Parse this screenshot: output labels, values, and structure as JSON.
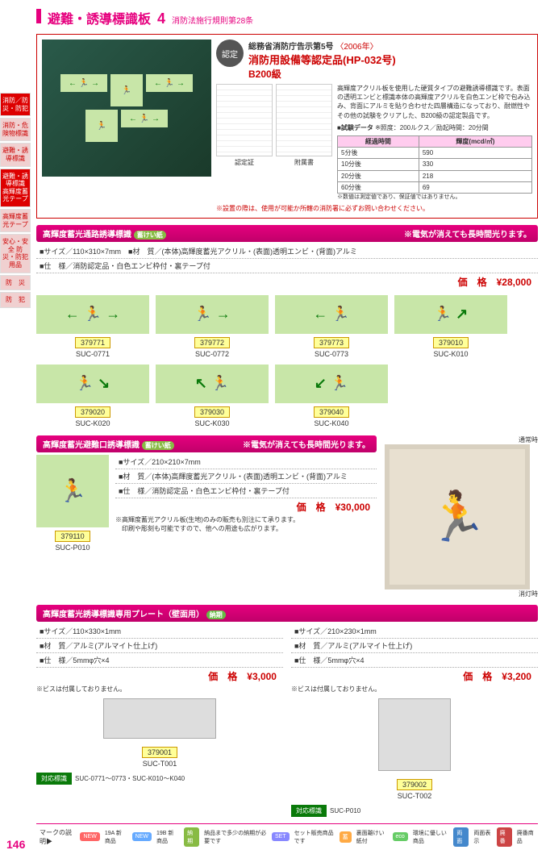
{
  "header": {
    "title": "避難・誘導標識板",
    "num": "4",
    "sub": "消防法施行規則第28条"
  },
  "sidetabs": [
    "消防／防災・防犯",
    "消防・危険物標識",
    "避難・誘導標識",
    "避難・誘導標識 高輝度蓄光テープ",
    "高輝度蓄光テープ",
    "安心・安全 防災・防犯用品",
    "防　災",
    "防　犯"
  ],
  "cert": {
    "stamp": "認定",
    "l1": "総務省消防庁告示第5号",
    "yr": "〈2006年〉",
    "l3": "消防用設備等認定品(HP-032号)",
    "l4": "B200級",
    "desc": "高輝度アクリル板を使用した硬質タイプの避難誘導標識です。表面の透明エンビと標識本体の高輝度アクリルを白色エンビ枠で包み込み、背面にアルミを貼り合わせた四層構造になっており、耐燃性やその他の試験をクリアした、B200級の認定製品です。",
    "docs": [
      "認定証",
      "附属書"
    ],
    "testTitle": "■試験データ",
    "testNote": "※照度：200ルクス／励起時間：20分間",
    "testHdr": [
      "経過時間",
      "輝度(mcd/㎡)"
    ],
    "testRows": [
      [
        "5分後",
        "590"
      ],
      [
        "10分後",
        "330"
      ],
      [
        "20分後",
        "218"
      ],
      [
        "60分後",
        "69"
      ]
    ],
    "testFoot": "※数値は測定値であり、保証値ではありません。",
    "warn": "※設置の際は、使用が可能か所轄の消防署に必ずお問い合わせください。"
  },
  "sec1": {
    "title": "高輝度蓄光通路誘導標識",
    "tag": "蓄けい紙",
    "right": "※電気が消えても長時間光ります。",
    "specs": [
      "■サイズ／110×310×7mm　■材　質／(本体)高輝度蓄光アクリル・(表面)透明エンビ・(背面)アルミ",
      "■仕　様／消防認定品・白色エンビ枠付・裏テープ付"
    ],
    "price": "価　格　¥28,000",
    "prods": [
      {
        "sym": "← 🏃 →",
        "code": "379771",
        "model": "SUC-0771"
      },
      {
        "sym": "🏃 →",
        "code": "379772",
        "model": "SUC-0772"
      },
      {
        "sym": "← 🏃",
        "code": "379773",
        "model": "SUC-0773"
      },
      {
        "sym": "🏃 ↗",
        "code": "379010",
        "model": "SUC-K010"
      },
      {
        "sym": "🏃 ↘",
        "code": "379020",
        "model": "SUC-K020"
      },
      {
        "sym": "↖ 🏃",
        "code": "379030",
        "model": "SUC-K030"
      },
      {
        "sym": "↙ 🏃",
        "code": "379040",
        "model": "SUC-K040"
      }
    ]
  },
  "sec2": {
    "title": "高輝度蓄光避難口誘導標識",
    "tag": "蓄けい紙",
    "right": "※電気が消えても長時間光ります。",
    "specs": [
      "■サイズ／210×210×7mm",
      "■材　質／(本体)高輝度蓄光アクリル・(表面)透明エンビ・(背面)アルミ",
      "■仕　様／消防認定品・白色エンビ枠付・裏テープ付"
    ],
    "price": "価　格　¥30,000",
    "note": "※高輝度蓄光アクリル板(生地)のみの販売も別注にて承ります。\n　印刷や彫刻も可能ですので、他への用途も広がります。",
    "prod": {
      "code": "379110",
      "model": "SUC-P010"
    },
    "photoLbl1": "通常時",
    "photoLbl2": "消灯時"
  },
  "sec3": {
    "title": "高輝度蓄光誘導標識専用プレート（壁面用）",
    "tag": "納期",
    "left": {
      "specs": [
        "■サイズ／110×330×1mm",
        "■材　質／アルミ(アルマイト仕上げ)",
        "■仕　様／5mmφ穴×4"
      ],
      "price": "価　格　¥3,000",
      "note": "※ビスは付属しておりません。",
      "code": "379001",
      "model": "SUC-T001",
      "comp": "対応標識",
      "compTxt": "SUC-0771～0773・SUC-K010～K040"
    },
    "right": {
      "specs": [
        "■サイズ／210×230×1mm",
        "■材　質／アルミ(アルマイト仕上げ)",
        "■仕　様／5mmφ穴×4"
      ],
      "price": "価　格　¥3,200",
      "note": "※ビスは付属しておりません。",
      "code": "379002",
      "model": "SUC-T002",
      "comp": "対応標識",
      "compTxt": "SUC-P010"
    }
  },
  "legend": {
    "label": "マークの説明▶",
    "items": [
      {
        "t": "NEW",
        "c": "#f66",
        "d": "19A 新商品"
      },
      {
        "t": "NEW",
        "c": "#6af",
        "d": "19B 新商品"
      },
      {
        "t": "納期",
        "c": "#8b4",
        "d": "納品まで多少の納期が必要です"
      },
      {
        "t": "SET",
        "c": "#88f",
        "d": "セット販売商品です"
      },
      {
        "t": "蓄",
        "c": "#fa4",
        "d": "裏面離けい紙付"
      },
      {
        "t": "eco",
        "c": "#6c6",
        "d": "環境に優しい商品"
      },
      {
        "t": "両面",
        "c": "#48c",
        "d": "両面表示"
      },
      {
        "t": "廃番",
        "c": "#c44",
        "d": "廃番商品"
      }
    ]
  },
  "pageNum": "146"
}
